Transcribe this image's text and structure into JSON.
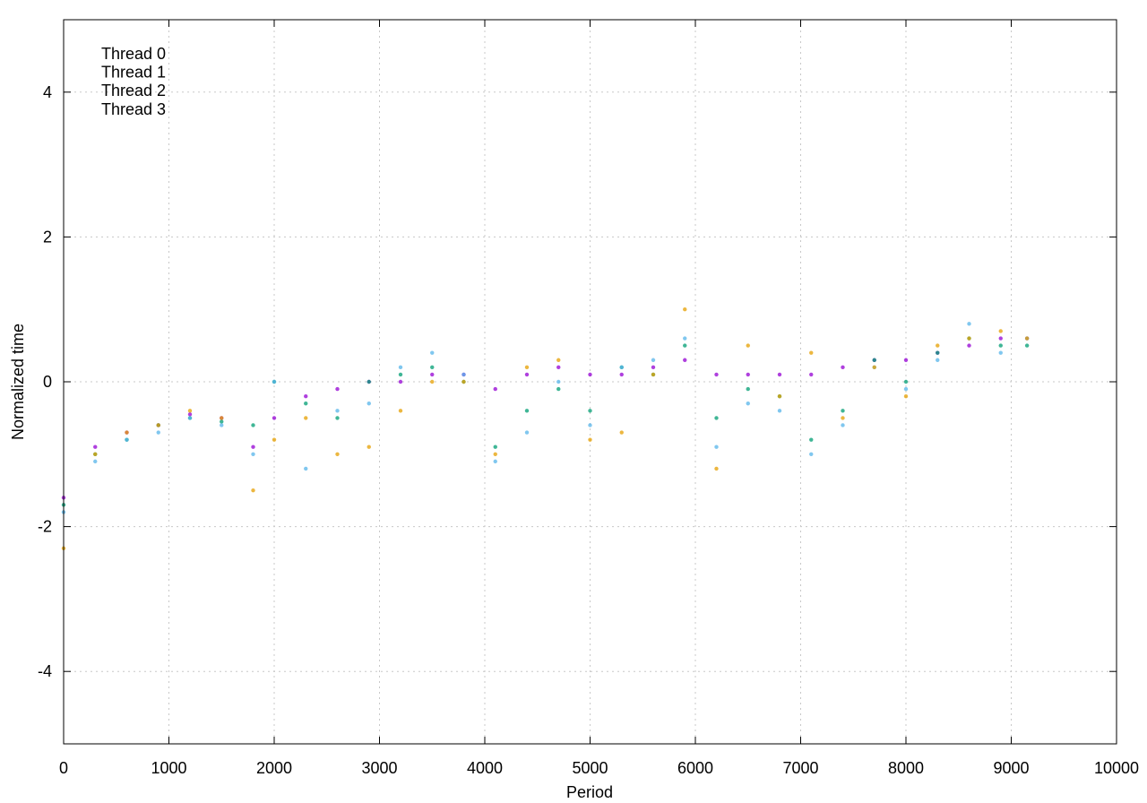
{
  "chart_data": {
    "type": "scatter",
    "title": "",
    "xlabel": "Period",
    "ylabel": "Normalized time",
    "xlim": [
      0,
      10000
    ],
    "ylim": [
      -5,
      5
    ],
    "x_ticks": [
      0,
      1000,
      2000,
      3000,
      4000,
      5000,
      6000,
      7000,
      8000,
      9000,
      10000
    ],
    "y_ticks": [
      -4,
      -2,
      0,
      2,
      4
    ],
    "x_tick_labels": [
      "0",
      "1000",
      "2000",
      "3000",
      "4000",
      "5000",
      "6000",
      "7000",
      "8000",
      "9000",
      "10000"
    ],
    "y_tick_labels": [
      "-4",
      "-2",
      "0",
      "2",
      "4"
    ],
    "grid": true,
    "legend_position": "top-left",
    "series": [
      {
        "name": "Thread 0",
        "color": "#9400d3",
        "x": [
          0,
          300,
          600,
          900,
          1200,
          1500,
          1800,
          2000,
          2300,
          2600,
          2900,
          3200,
          3500,
          3800,
          4100,
          4400,
          4700,
          5000,
          5300,
          5600,
          5900,
          6200,
          6500,
          6800,
          7100,
          7400,
          7700,
          8000,
          8300,
          8600,
          8900,
          9150
        ],
        "y": [
          -1.6,
          -0.9,
          -0.7,
          -0.6,
          -0.45,
          -0.5,
          -0.9,
          -0.5,
          -0.2,
          -0.1,
          0.0,
          0.0,
          0.1,
          0.1,
          -0.1,
          0.1,
          0.2,
          0.1,
          0.1,
          0.2,
          0.3,
          0.1,
          0.1,
          0.1,
          0.1,
          0.2,
          0.3,
          0.3,
          0.4,
          0.5,
          0.6,
          0.6
        ]
      },
      {
        "name": "Thread 1",
        "color": "#009e73",
        "x": [
          0,
          300,
          600,
          900,
          1200,
          1500,
          1800,
          2000,
          2300,
          2600,
          2900,
          3200,
          3500,
          3800,
          4100,
          4400,
          4700,
          5000,
          5300,
          5600,
          5900,
          6200,
          6500,
          6800,
          7100,
          7400,
          7700,
          8000,
          8300,
          8600,
          8900,
          9150
        ],
        "y": [
          -1.7,
          -1.0,
          -0.8,
          -0.6,
          -0.5,
          -0.55,
          -0.6,
          0.0,
          -0.3,
          -0.5,
          0.0,
          0.1,
          0.2,
          0.0,
          -0.9,
          -0.4,
          -0.1,
          -0.4,
          0.2,
          0.1,
          0.5,
          -0.5,
          -0.1,
          -0.2,
          -0.8,
          -0.4,
          0.3,
          0.0,
          0.4,
          0.6,
          0.5,
          0.5
        ]
      },
      {
        "name": "Thread 2",
        "color": "#56b4e9",
        "x": [
          0,
          300,
          600,
          900,
          1200,
          1500,
          1800,
          2000,
          2300,
          2600,
          2900,
          3200,
          3500,
          3800,
          4100,
          4400,
          4700,
          5000,
          5300,
          5600,
          5900,
          6200,
          6500,
          6800,
          7100,
          7400,
          7700,
          8000,
          8300,
          8600,
          8900,
          9150
        ],
        "y": [
          -1.8,
          -1.1,
          -0.8,
          -0.7,
          -0.5,
          -0.6,
          -1.0,
          0.0,
          -1.2,
          -0.4,
          -0.3,
          0.2,
          0.4,
          0.1,
          -1.1,
          -0.7,
          0.0,
          -0.6,
          0.2,
          0.3,
          0.6,
          -0.9,
          -0.3,
          -0.4,
          -1.0,
          -0.6,
          0.2,
          -0.1,
          0.3,
          0.8,
          0.4,
          0.6
        ]
      },
      {
        "name": "Thread 3",
        "color": "#e69f00",
        "x": [
          0,
          300,
          600,
          900,
          1200,
          1500,
          1800,
          2000,
          2300,
          2600,
          2900,
          3200,
          3500,
          3800,
          4100,
          4400,
          4700,
          5000,
          5300,
          5600,
          5900,
          6200,
          6500,
          6800,
          7100,
          7400,
          7700,
          8000,
          8300,
          8600,
          8900,
          9150
        ],
        "y": [
          -2.3,
          -1.0,
          -0.7,
          -0.6,
          -0.4,
          -0.5,
          -1.5,
          -0.8,
          -0.5,
          -1.0,
          -0.9,
          -0.4,
          0.0,
          0.0,
          -1.0,
          0.2,
          0.3,
          -0.8,
          -0.7,
          0.1,
          1.0,
          -1.2,
          0.5,
          -0.2,
          0.4,
          -0.5,
          0.2,
          -0.2,
          0.5,
          0.6,
          0.7,
          0.6
        ]
      }
    ]
  }
}
